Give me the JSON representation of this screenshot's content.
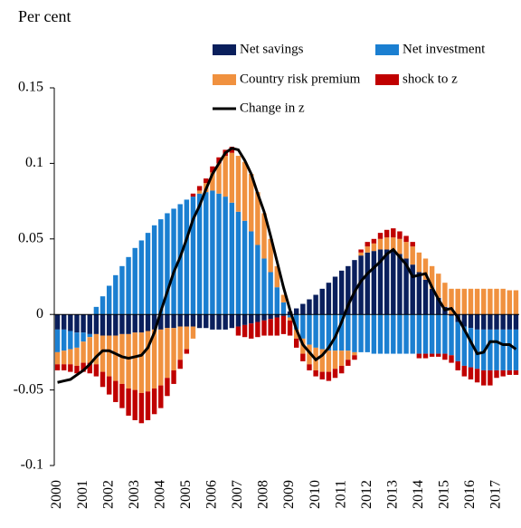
{
  "chart_data": {
    "type": "bar",
    "stacked": true,
    "y_label": "Per cent",
    "categories": [
      "2000",
      null,
      null,
      null,
      "2001",
      null,
      null,
      null,
      "2002",
      null,
      null,
      null,
      "2003",
      null,
      null,
      null,
      "2004",
      null,
      null,
      null,
      "2005",
      null,
      null,
      null,
      "2006",
      null,
      null,
      null,
      "2007",
      null,
      null,
      null,
      "2008",
      null,
      null,
      null,
      "2009",
      null,
      null,
      null,
      "2010",
      null,
      null,
      null,
      "2011",
      null,
      null,
      null,
      "2012",
      null,
      null,
      null,
      "2013",
      null,
      null,
      null,
      "2014",
      null,
      null,
      null,
      "2015",
      null,
      null,
      null,
      "2016",
      null,
      null,
      null,
      "2017",
      null,
      null,
      null
    ],
    "series": [
      {
        "name": "Net savings",
        "color": "#0a1f5c",
        "values": [
          -0.01,
          -0.01,
          -0.011,
          -0.012,
          -0.012,
          -0.013,
          -0.013,
          -0.014,
          -0.014,
          -0.014,
          -0.013,
          -0.013,
          -0.012,
          -0.012,
          -0.011,
          -0.01,
          -0.01,
          -0.009,
          -0.009,
          -0.008,
          -0.008,
          -0.008,
          -0.009,
          -0.009,
          -0.01,
          -0.01,
          -0.01,
          -0.009,
          -0.008,
          -0.007,
          -0.006,
          -0.005,
          -0.004,
          -0.003,
          -0.002,
          -0.001,
          0.002,
          0.004,
          0.007,
          0.01,
          0.013,
          0.017,
          0.021,
          0.025,
          0.029,
          0.032,
          0.036,
          0.039,
          0.041,
          0.042,
          0.043,
          0.043,
          0.042,
          0.04,
          0.037,
          0.033,
          0.028,
          0.023,
          0.017,
          0.011,
          0.005,
          -0.001,
          -0.005,
          -0.008,
          -0.009,
          -0.01,
          -0.01,
          -0.01,
          -0.01,
          -0.01,
          -0.01,
          -0.01
        ]
      },
      {
        "name": "Net investment",
        "color": "#1b7fd1",
        "values": [
          -0.015,
          -0.014,
          -0.012,
          -0.01,
          -0.006,
          -0.002,
          0.005,
          0.012,
          0.019,
          0.026,
          0.032,
          0.038,
          0.044,
          0.049,
          0.054,
          0.059,
          0.063,
          0.067,
          0.07,
          0.073,
          0.076,
          0.078,
          0.08,
          0.081,
          0.082,
          0.08,
          0.078,
          0.074,
          0.068,
          0.062,
          0.055,
          0.046,
          0.037,
          0.028,
          0.018,
          0.008,
          -0.002,
          -0.01,
          -0.016,
          -0.02,
          -0.022,
          -0.023,
          -0.024,
          -0.024,
          -0.024,
          -0.024,
          -0.025,
          -0.025,
          -0.025,
          -0.026,
          -0.026,
          -0.026,
          -0.026,
          -0.026,
          -0.026,
          -0.026,
          -0.026,
          -0.026,
          -0.026,
          -0.026,
          -0.026,
          -0.026,
          -0.026,
          -0.026,
          -0.026,
          -0.026,
          -0.027,
          -0.027,
          -0.027,
          -0.027,
          -0.027,
          -0.027
        ]
      },
      {
        "name": "Country risk premium",
        "color": "#f0913f",
        "values": [
          -0.008,
          -0.009,
          -0.01,
          -0.012,
          -0.014,
          -0.017,
          -0.02,
          -0.024,
          -0.027,
          -0.03,
          -0.033,
          -0.036,
          -0.038,
          -0.04,
          -0.04,
          -0.039,
          -0.037,
          -0.033,
          -0.028,
          -0.022,
          -0.015,
          -0.008,
          0.002,
          0.006,
          0.012,
          0.02,
          0.027,
          0.033,
          0.037,
          0.039,
          0.038,
          0.035,
          0.03,
          0.022,
          0.014,
          0.005,
          -0.002,
          -0.006,
          -0.01,
          -0.013,
          -0.015,
          -0.015,
          -0.014,
          -0.012,
          -0.01,
          -0.006,
          -0.002,
          0.002,
          0.004,
          0.005,
          0.007,
          0.008,
          0.009,
          0.01,
          0.011,
          0.012,
          0.013,
          0.014,
          0.015,
          0.016,
          0.016,
          0.017,
          0.017,
          0.017,
          0.017,
          0.017,
          0.017,
          0.017,
          0.017,
          0.017,
          0.016,
          0.016
        ]
      },
      {
        "name": "shock to z",
        "color": "#c00000",
        "values": [
          -0.004,
          -0.004,
          -0.005,
          -0.005,
          -0.006,
          -0.007,
          -0.008,
          -0.01,
          -0.012,
          -0.014,
          -0.016,
          -0.018,
          -0.02,
          -0.02,
          -0.019,
          -0.017,
          -0.015,
          -0.012,
          -0.009,
          -0.006,
          -0.003,
          0.002,
          0.003,
          0.003,
          0.004,
          0.004,
          0.004,
          0.004,
          -0.006,
          -0.008,
          -0.01,
          -0.01,
          -0.01,
          -0.011,
          -0.012,
          -0.012,
          -0.01,
          -0.006,
          -0.005,
          -0.004,
          -0.004,
          -0.005,
          -0.006,
          -0.006,
          -0.005,
          -0.004,
          -0.003,
          0.002,
          0.003,
          0.003,
          0.004,
          0.005,
          0.006,
          0.005,
          0.004,
          0.003,
          -0.003,
          -0.003,
          -0.002,
          -0.002,
          -0.004,
          -0.005,
          -0.006,
          -0.007,
          -0.008,
          -0.009,
          -0.01,
          -0.01,
          -0.005,
          -0.004,
          -0.003,
          -0.003
        ]
      }
    ],
    "line": {
      "name": "Change in z",
      "color": "#000000",
      "values": [
        -0.045,
        -0.044,
        -0.043,
        -0.04,
        -0.037,
        -0.033,
        -0.028,
        -0.024,
        -0.024,
        -0.026,
        -0.028,
        -0.029,
        -0.028,
        -0.027,
        -0.022,
        -0.012,
        0.002,
        0.015,
        0.028,
        0.038,
        0.05,
        0.063,
        0.072,
        0.083,
        0.093,
        0.1,
        0.107,
        0.11,
        0.109,
        0.102,
        0.093,
        0.08,
        0.068,
        0.052,
        0.035,
        0.018,
        0.003,
        -0.01,
        -0.02,
        -0.025,
        -0.03,
        -0.027,
        -0.022,
        -0.015,
        -0.005,
        0.006,
        0.015,
        0.022,
        0.027,
        0.031,
        0.035,
        0.04,
        0.043,
        0.038,
        0.033,
        0.025,
        0.026,
        0.027,
        0.018,
        0.01,
        0.003,
        0.004,
        -0.002,
        -0.01,
        -0.018,
        -0.026,
        -0.025,
        -0.018,
        -0.018,
        -0.02,
        -0.02,
        -0.023
      ]
    },
    "ylim": [
      -0.1,
      0.15
    ],
    "yticks": [
      -0.1,
      -0.05,
      0,
      0.05,
      0.1,
      0.15
    ],
    "grid": false
  }
}
